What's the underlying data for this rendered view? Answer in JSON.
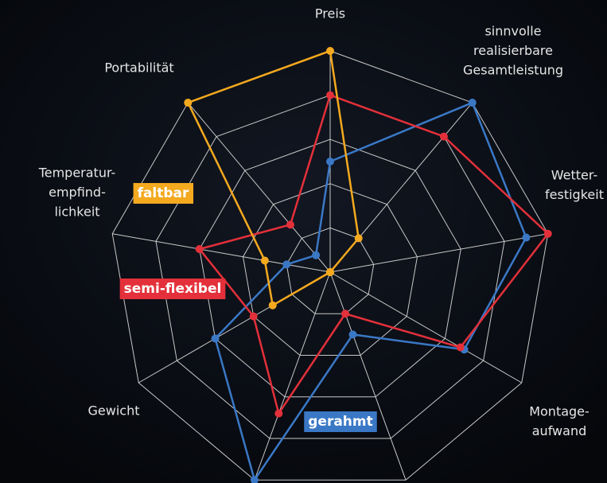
{
  "chart_data": {
    "type": "radar",
    "categories": [
      [
        "Preis"
      ],
      [
        "sinnvolle",
        "realisierbare",
        "Gesamtleistung"
      ],
      [
        "Wetter-",
        "festigkeit"
      ],
      [
        "Montage-",
        "aufwand"
      ],
      null,
      null,
      [
        "Gewicht"
      ],
      [
        "Temperatur-",
        "empfind-",
        "lichkeit"
      ],
      [
        "Portabilität"
      ]
    ],
    "ylim": [
      0,
      10
    ],
    "yticks": [
      2,
      4,
      6,
      8,
      10
    ],
    "grid": true,
    "series": [
      {
        "name": "gerahmt",
        "color": "#3a78c6",
        "values": [
          5,
          10,
          9,
          7,
          3,
          10,
          6,
          2,
          1
        ]
      },
      {
        "name": "semi-flexibel",
        "color": "#e3303a",
        "values": [
          8,
          8,
          10,
          6.8,
          2,
          6.8,
          4,
          6,
          2.8
        ]
      },
      {
        "name": "faltbar",
        "color": "#f4a91f",
        "values": [
          10,
          2,
          0,
          0,
          0,
          0,
          3,
          3,
          10
        ]
      }
    ]
  }
}
